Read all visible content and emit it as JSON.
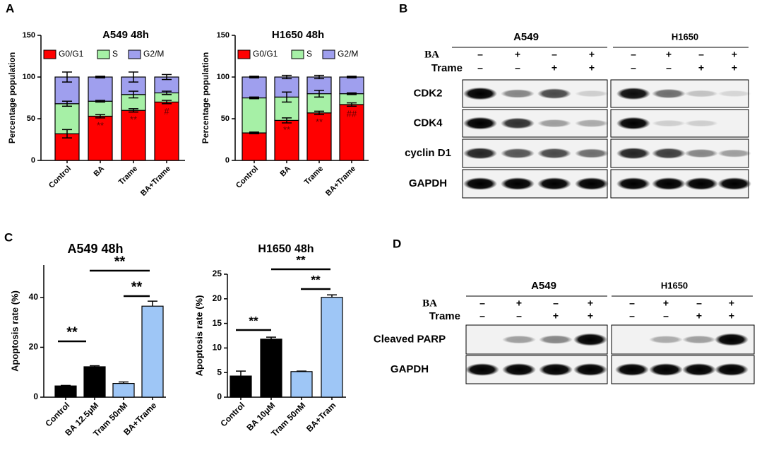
{
  "panels": [
    "A",
    "B",
    "C",
    "D"
  ],
  "chart_data": [
    {
      "type": "stacked_bar",
      "title": "A549 48h",
      "y_label": "Percentage population",
      "categories": [
        "Control",
        "BA",
        "Trame",
        "BA+Trame"
      ],
      "series": [
        {
          "name": "G0/G1",
          "color": "#ff0000",
          "values": [
            32,
            53,
            60,
            70
          ],
          "errors": [
            5,
            2,
            2,
            2
          ],
          "significance": [
            null,
            "**",
            "**",
            "#"
          ]
        },
        {
          "name": "S",
          "color": "#a6f0a6",
          "values": [
            36,
            18,
            19,
            11
          ],
          "errors": [
            3,
            1,
            4,
            2
          ]
        },
        {
          "name": "G2/M",
          "color": "#9f9fee",
          "values": [
            32,
            29,
            21,
            19
          ],
          "errors": [
            6,
            1,
            6,
            3
          ]
        }
      ],
      "ylim": [
        0,
        150
      ],
      "yticks": [
        0,
        50,
        100,
        150
      ]
    },
    {
      "type": "stacked_bar",
      "title": "H1650 48h",
      "y_label": "Percentage population",
      "categories": [
        "Control",
        "BA",
        "Trame",
        "BA+Trame"
      ],
      "series": [
        {
          "name": "G0/G1",
          "color": "#ff0000",
          "values": [
            33,
            48,
            57,
            67
          ],
          "errors": [
            1,
            3,
            2,
            2
          ],
          "significance": [
            null,
            "**",
            "**",
            "##"
          ]
        },
        {
          "name": "S",
          "color": "#a6f0a6",
          "values": [
            42,
            28,
            23,
            13
          ],
          "errors": [
            1,
            6,
            4,
            1
          ]
        },
        {
          "name": "G2/M",
          "color": "#9f9fee",
          "values": [
            25,
            24,
            20,
            20
          ],
          "errors": [
            1,
            2,
            2,
            1
          ]
        }
      ],
      "ylim": [
        0,
        150
      ],
      "yticks": [
        0,
        50,
        100,
        150
      ]
    },
    {
      "type": "bar",
      "title": "A549 48h",
      "y_label": "Apoptosis rate (%)",
      "categories": [
        "Control",
        "BA 12.5μM",
        "Tram 50nM",
        "BA+Trame"
      ],
      "values": [
        4.5,
        12.2,
        5.5,
        36.5
      ],
      "errors": [
        0.2,
        0.4,
        0.6,
        2
      ],
      "colors": [
        "#000000",
        "#000000",
        "#9ec6f6",
        "#9ec6f6"
      ],
      "annotations": [
        "**",
        "**",
        "**"
      ],
      "ylim": [
        0,
        53
      ],
      "yticks": [
        0,
        20,
        40
      ]
    },
    {
      "type": "bar",
      "title": "H1650 48h",
      "y_label": "Apoptosis rate (%)",
      "categories": [
        "Control",
        "BA 10μM",
        "Tram 50nM",
        "BA+Tram"
      ],
      "values": [
        4.3,
        11.8,
        5.2,
        20.3
      ],
      "errors": [
        1,
        0.4,
        0.1,
        0.5
      ],
      "colors": [
        "#000000",
        "#000000",
        "#9ec6f6",
        "#9ec6f6"
      ],
      "annotations": [
        "**",
        "**",
        "**"
      ],
      "ylim": [
        0,
        25
      ],
      "yticks": [
        0,
        5,
        10,
        15,
        20,
        25
      ]
    }
  ],
  "blots": [
    {
      "cell_lines": [
        "A549",
        "H1650"
      ],
      "treatments": [
        {
          "name": "BA",
          "signs": [
            "–",
            "+",
            "–",
            "+",
            "–",
            "+",
            "–",
            "+"
          ]
        },
        {
          "name": "Trame",
          "signs": [
            "–",
            "–",
            "+",
            "+",
            "–",
            "–",
            "+",
            "+"
          ]
        }
      ],
      "proteins": [
        "CDK2",
        "CDK4",
        "cyclin D1",
        "GAPDH"
      ]
    },
    {
      "cell_lines": [
        "A549",
        "H1650"
      ],
      "treatments": [
        {
          "name": "BA",
          "signs": [
            "–",
            "+",
            "–",
            "+",
            "–",
            "+",
            "–",
            "+"
          ]
        },
        {
          "name": "Trame",
          "signs": [
            "–",
            "–",
            "+",
            "+",
            "–",
            "–",
            "+",
            "+"
          ]
        }
      ],
      "proteins": [
        "Cleaved PARP",
        "GAPDH"
      ]
    }
  ]
}
